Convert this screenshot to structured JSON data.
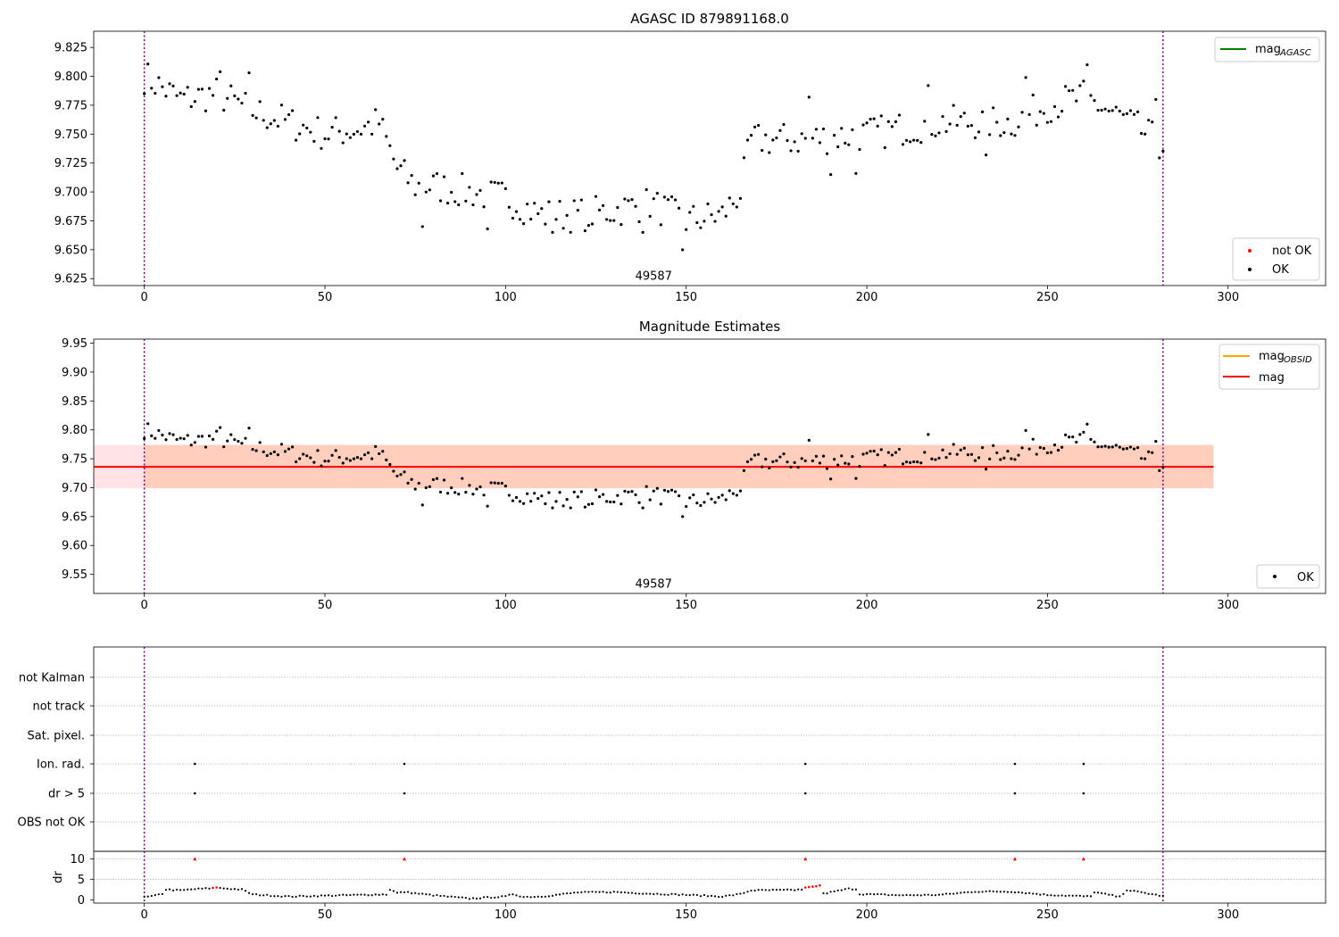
{
  "figure": {
    "panels": [
      {
        "id": "top",
        "title": "AGASC ID 879891168.0",
        "annotation": "49587",
        "x_ticks": [
          "0",
          "50",
          "100",
          "150",
          "200",
          "250",
          "300"
        ],
        "y_ticks": [
          "9.625",
          "9.650",
          "9.675",
          "9.700",
          "9.725",
          "9.750",
          "9.775",
          "9.800",
          "9.825"
        ],
        "legend_lines": [
          {
            "label": "mag",
            "sub": "AGASC",
            "color": "#008000"
          }
        ],
        "legend_points": [
          {
            "label": "not OK",
            "color": "#ff0000"
          },
          {
            "label": "OK",
            "color": "#000000"
          }
        ]
      },
      {
        "id": "middle",
        "title": "Magnitude Estimates",
        "annotation": "49587",
        "x_ticks": [
          "0",
          "50",
          "100",
          "150",
          "200",
          "250",
          "300"
        ],
        "y_ticks": [
          "9.55",
          "9.60",
          "9.65",
          "9.70",
          "9.75",
          "9.80",
          "9.85",
          "9.90",
          "9.95"
        ],
        "legend_lines": [
          {
            "label": "mag",
            "sub": "OBSID",
            "color": "#ffa500"
          },
          {
            "label": "mag",
            "sub": "",
            "color": "#ff0000"
          }
        ],
        "legend_points": [
          {
            "label": "OK",
            "color": "#000000"
          }
        ]
      },
      {
        "id": "flags",
        "y_labels": [
          "not Kalman",
          "not track",
          "Sat. pixel.",
          "Ion. rad.",
          "dr > 5",
          "OBS not OK"
        ]
      },
      {
        "id": "dr",
        "y_axis_label": "dr",
        "y_ticks": [
          "0",
          "5",
          "10"
        ],
        "x_ticks": [
          "0",
          "50",
          "100",
          "150",
          "200",
          "250",
          "300"
        ]
      }
    ]
  },
  "chart_data": [
    {
      "type": "scatter",
      "title": "AGASC ID 879891168.0",
      "xlim": [
        -14,
        327
      ],
      "ylim": [
        9.619,
        9.839
      ],
      "obsid_boundaries": [
        0,
        282
      ],
      "annotation": {
        "text": "49587",
        "x": 141,
        "y": 9.628
      },
      "series": [
        {
          "name": "OK",
          "color": "#000000",
          "keyframes": [
            [
              0,
              9.8
            ],
            [
              10,
              9.78
            ],
            [
              20,
              9.785
            ],
            [
              30,
              9.77
            ],
            [
              40,
              9.76
            ],
            [
              50,
              9.75
            ],
            [
              60,
              9.755
            ],
            [
              65,
              9.76
            ],
            [
              70,
              9.72
            ],
            [
              75,
              9.705
            ],
            [
              80,
              9.705
            ],
            [
              90,
              9.7
            ],
            [
              100,
              9.695
            ],
            [
              110,
              9.68
            ],
            [
              120,
              9.68
            ],
            [
              130,
              9.684
            ],
            [
              140,
              9.69
            ],
            [
              150,
              9.675
            ],
            [
              160,
              9.68
            ],
            [
              165,
              9.7
            ],
            [
              168,
              9.745
            ],
            [
              180,
              9.745
            ],
            [
              200,
              9.75
            ],
            [
              220,
              9.76
            ],
            [
              240,
              9.76
            ],
            [
              250,
              9.775
            ],
            [
              260,
              9.782
            ],
            [
              270,
              9.765
            ],
            [
              282,
              9.74
            ]
          ],
          "outliers": [
            [
              21,
              9.804
            ],
            [
              29,
              9.803
            ],
            [
              77,
              9.67
            ],
            [
              95,
              9.668
            ],
            [
              113,
              9.665
            ],
            [
              123,
              9.671
            ],
            [
              138,
              9.665
            ],
            [
              149,
              9.65
            ],
            [
              184,
              9.782
            ],
            [
              190,
              9.715
            ],
            [
              197,
              9.716
            ],
            [
              217,
              9.792
            ],
            [
              233,
              9.732
            ],
            [
              244,
              9.799
            ],
            [
              261,
              9.81
            ],
            [
              280,
              9.78
            ]
          ]
        },
        {
          "name": "not OK",
          "color": "#ff0000",
          "values": []
        }
      ],
      "legend": [
        {
          "name": "mag_AGASC",
          "color": "#008000"
        }
      ]
    },
    {
      "type": "scatter",
      "title": "Magnitude Estimates",
      "xlim": [
        -14,
        327
      ],
      "ylim": [
        9.517,
        9.957
      ],
      "mag": 9.736,
      "mag_band": [
        9.699,
        9.774
      ],
      "mag_band_x": [
        -14,
        296
      ],
      "obsid_band_x": [
        0,
        296
      ],
      "obsid_boundaries": [
        0,
        282
      ],
      "annotation": {
        "text": "49587",
        "x": 141,
        "y": 9.535
      },
      "series": [
        {
          "name": "OK",
          "color": "#000000",
          "same_as": "panel 1 OK"
        },
        {
          "name": "mag_OBSID",
          "color": "#ffa500"
        },
        {
          "name": "mag",
          "color": "#ff0000"
        }
      ]
    },
    {
      "type": "scatter",
      "categories": [
        "not Kalman",
        "not track",
        "Sat. pixel.",
        "Ion. rad.",
        "dr > 5",
        "OBS not OK"
      ],
      "points": [
        {
          "category": "Ion. rad.",
          "x": [
            14,
            72,
            183,
            241,
            260
          ]
        },
        {
          "category": "dr > 5",
          "x": [
            14,
            72,
            183,
            241,
            260
          ]
        }
      ]
    },
    {
      "type": "scatter",
      "ylabel": "dr",
      "ylim": [
        -0.8,
        11.8
      ],
      "red_points": [
        [
          14,
          10
        ],
        [
          72,
          10
        ],
        [
          183,
          10
        ],
        [
          241,
          10
        ],
        [
          260,
          10
        ],
        [
          19,
          2.9
        ],
        [
          20,
          3.0
        ],
        [
          183,
          3.0
        ],
        [
          184,
          3.1
        ],
        [
          185,
          3.2
        ],
        [
          186,
          3.3
        ],
        [
          187,
          3.5
        ]
      ],
      "keyframes": [
        [
          0,
          0.6
        ],
        [
          3,
          1.0
        ],
        [
          5,
          1.5
        ],
        [
          6,
          2.5
        ],
        [
          10,
          2.3
        ],
        [
          14,
          2.6
        ],
        [
          20,
          2.9
        ],
        [
          27,
          2.5
        ],
        [
          30,
          1.3
        ],
        [
          40,
          0.8
        ],
        [
          50,
          1.0
        ],
        [
          60,
          1.2
        ],
        [
          67,
          1.3
        ],
        [
          68,
          2.5
        ],
        [
          70,
          1.7
        ],
        [
          72,
          1.9
        ],
        [
          80,
          1.1
        ],
        [
          90,
          0.3
        ],
        [
          100,
          0.8
        ],
        [
          102,
          1.4
        ],
        [
          105,
          0.7
        ],
        [
          110,
          0.8
        ],
        [
          120,
          1.8
        ],
        [
          130,
          1.9
        ],
        [
          140,
          1.5
        ],
        [
          150,
          1.2
        ],
        [
          160,
          0.8
        ],
        [
          165,
          1.4
        ],
        [
          168,
          2.3
        ],
        [
          180,
          2.4
        ],
        [
          183,
          2.6
        ],
        [
          188,
          1.5
        ],
        [
          195,
          2.7
        ],
        [
          197,
          2.6
        ],
        [
          198,
          1.4
        ],
        [
          210,
          1.1
        ],
        [
          220,
          1.2
        ],
        [
          230,
          2.0
        ],
        [
          240,
          2.0
        ],
        [
          250,
          1.2
        ],
        [
          262,
          0.8
        ],
        [
          263,
          1.9
        ],
        [
          270,
          0.7
        ],
        [
          272,
          2.4
        ],
        [
          282,
          0.9
        ]
      ]
    }
  ]
}
